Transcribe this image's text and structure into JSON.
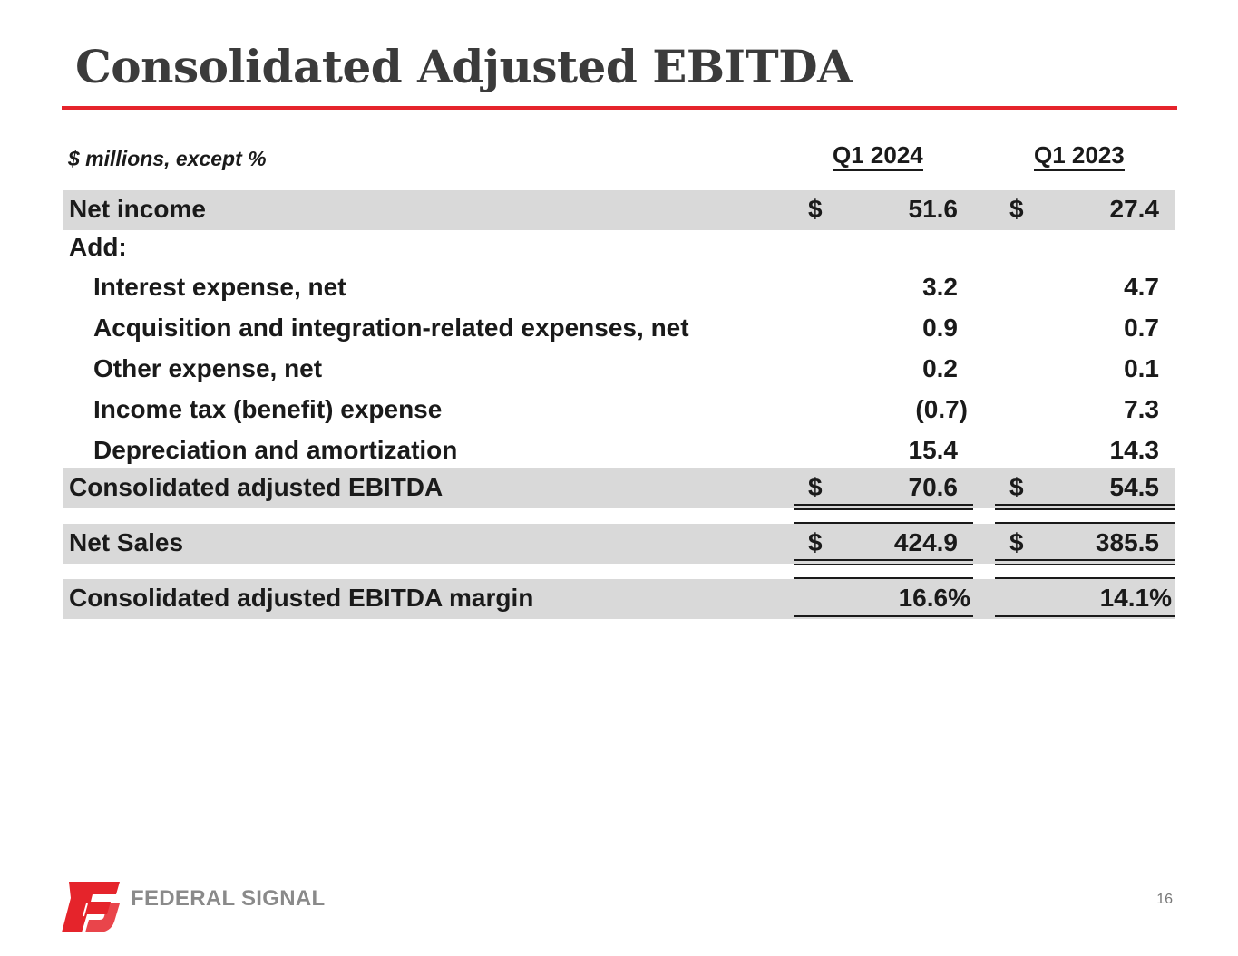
{
  "slide": {
    "title": "Consolidated Adjusted EBITDA",
    "units_note": "$ millions, except %",
    "page_number": "16",
    "accent_color": "#e5242b"
  },
  "columns": [
    "Q1 2024",
    "Q1 2023"
  ],
  "rows": [
    {
      "label": "Net income",
      "cur1": "$",
      "v1": "51.6",
      "cur2": "$",
      "v2": "27.4"
    },
    {
      "label": "Add:"
    },
    {
      "label": "Interest expense, net",
      "v1": "3.2",
      "v2": "4.7"
    },
    {
      "label": "Acquisition and integration-related expenses, net",
      "v1": "0.9",
      "v2": "0.7"
    },
    {
      "label": "Other expense, net",
      "v1": "0.2",
      "v2": "0.1"
    },
    {
      "label": "Income tax (benefit) expense",
      "v1": "(0.7)",
      "v2": "7.3"
    },
    {
      "label": "Depreciation and amortization",
      "v1": "15.4",
      "v2": "14.3"
    },
    {
      "label": "Consolidated adjusted EBITDA",
      "cur1": "$",
      "v1": "70.6",
      "cur2": "$",
      "v2": "54.5"
    },
    {
      "label": "Net Sales",
      "cur1": "$",
      "v1": "424.9",
      "cur2": "$",
      "v2": "385.5"
    },
    {
      "label": "Consolidated adjusted EBITDA margin",
      "v1": "16.6%",
      "v2": "14.1%"
    }
  ],
  "logo": {
    "name": "FEDERAL SIGNAL",
    "mark": "fs",
    "mark_color": "#e5242b"
  }
}
